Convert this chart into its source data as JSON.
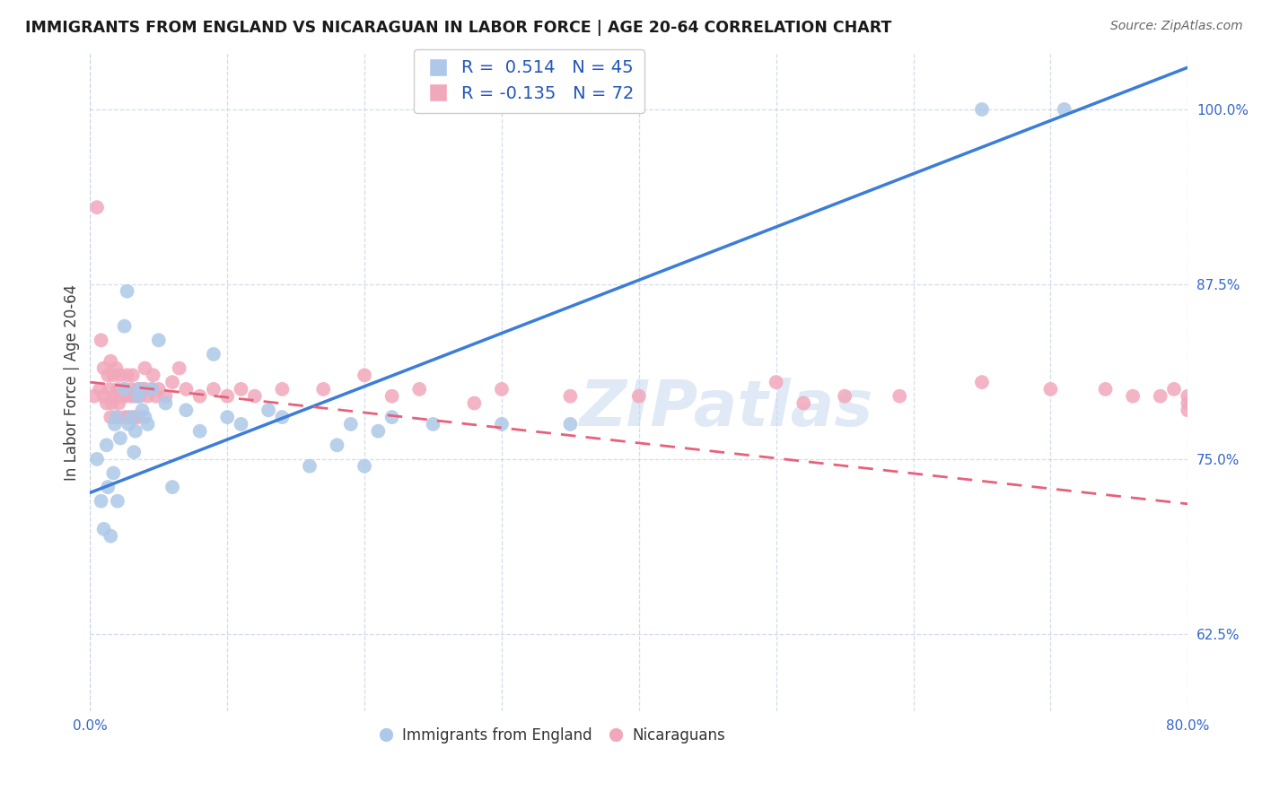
{
  "title": "IMMIGRANTS FROM ENGLAND VS NICARAGUAN IN LABOR FORCE | AGE 20-64 CORRELATION CHART",
  "source": "Source: ZipAtlas.com",
  "ylabel": "In Labor Force | Age 20-64",
  "xlim": [
    0.0,
    0.8
  ],
  "ylim": [
    0.57,
    1.04
  ],
  "xticks": [
    0.0,
    0.1,
    0.2,
    0.3,
    0.4,
    0.5,
    0.6,
    0.7,
    0.8
  ],
  "xticklabels": [
    "0.0%",
    "",
    "",
    "",
    "",
    "",
    "",
    "",
    "80.0%"
  ],
  "yticks": [
    0.625,
    0.75,
    0.875,
    1.0
  ],
  "yticklabels": [
    "62.5%",
    "75.0%",
    "87.5%",
    "100.0%"
  ],
  "r_england": 0.514,
  "n_england": 45,
  "r_nicaraguan": -0.135,
  "n_nicaraguan": 72,
  "england_color": "#adc8e8",
  "nicaraguan_color": "#f2a8bb",
  "england_line_color": "#3b7dd8",
  "nicaraguan_line_color": "#e8607a",
  "watermark": "ZIPatlas",
  "eng_line_x0": 0.0,
  "eng_line_y0": 0.726,
  "eng_line_x1": 0.8,
  "eng_line_y1": 1.03,
  "nic_line_x0": 0.0,
  "nic_line_y0": 0.805,
  "nic_line_x1": 0.8,
  "nic_line_y1": 0.718,
  "england_scatter_x": [
    0.005,
    0.008,
    0.01,
    0.012,
    0.013,
    0.015,
    0.017,
    0.018,
    0.019,
    0.02,
    0.022,
    0.025,
    0.025,
    0.027,
    0.028,
    0.03,
    0.032,
    0.033,
    0.035,
    0.036,
    0.038,
    0.04,
    0.042,
    0.045,
    0.05,
    0.055,
    0.06,
    0.07,
    0.08,
    0.09,
    0.1,
    0.11,
    0.13,
    0.14,
    0.16,
    0.18,
    0.19,
    0.2,
    0.21,
    0.22,
    0.25,
    0.3,
    0.35,
    0.65,
    0.71
  ],
  "england_scatter_y": [
    0.75,
    0.72,
    0.7,
    0.76,
    0.73,
    0.695,
    0.74,
    0.775,
    0.78,
    0.72,
    0.765,
    0.8,
    0.845,
    0.87,
    0.775,
    0.78,
    0.755,
    0.77,
    0.795,
    0.8,
    0.785,
    0.78,
    0.775,
    0.8,
    0.835,
    0.79,
    0.73,
    0.785,
    0.77,
    0.825,
    0.78,
    0.775,
    0.785,
    0.78,
    0.745,
    0.76,
    0.775,
    0.745,
    0.77,
    0.78,
    0.775,
    0.775,
    0.775,
    1.0,
    1.0
  ],
  "nicaraguan_scatter_x": [
    0.003,
    0.005,
    0.007,
    0.008,
    0.01,
    0.01,
    0.012,
    0.013,
    0.014,
    0.015,
    0.015,
    0.016,
    0.017,
    0.018,
    0.019,
    0.02,
    0.02,
    0.021,
    0.022,
    0.023,
    0.025,
    0.025,
    0.026,
    0.027,
    0.028,
    0.03,
    0.03,
    0.031,
    0.032,
    0.033,
    0.035,
    0.035,
    0.036,
    0.038,
    0.04,
    0.04,
    0.042,
    0.045,
    0.046,
    0.048,
    0.05,
    0.055,
    0.06,
    0.065,
    0.07,
    0.08,
    0.09,
    0.1,
    0.11,
    0.12,
    0.14,
    0.17,
    0.2,
    0.22,
    0.24,
    0.28,
    0.3,
    0.35,
    0.4,
    0.5,
    0.52,
    0.55,
    0.59,
    0.65,
    0.7,
    0.74,
    0.76,
    0.78,
    0.79,
    0.8,
    0.8,
    0.8
  ],
  "nicaraguan_scatter_y": [
    0.795,
    0.93,
    0.8,
    0.835,
    0.795,
    0.815,
    0.79,
    0.81,
    0.8,
    0.78,
    0.82,
    0.79,
    0.81,
    0.795,
    0.815,
    0.78,
    0.8,
    0.79,
    0.81,
    0.795,
    0.78,
    0.8,
    0.795,
    0.81,
    0.78,
    0.8,
    0.795,
    0.81,
    0.78,
    0.795,
    0.78,
    0.8,
    0.795,
    0.8,
    0.815,
    0.8,
    0.795,
    0.8,
    0.81,
    0.795,
    0.8,
    0.795,
    0.805,
    0.815,
    0.8,
    0.795,
    0.8,
    0.795,
    0.8,
    0.795,
    0.8,
    0.8,
    0.81,
    0.795,
    0.8,
    0.79,
    0.8,
    0.795,
    0.795,
    0.805,
    0.79,
    0.795,
    0.795,
    0.805,
    0.8,
    0.8,
    0.795,
    0.795,
    0.8,
    0.785,
    0.79,
    0.795
  ]
}
